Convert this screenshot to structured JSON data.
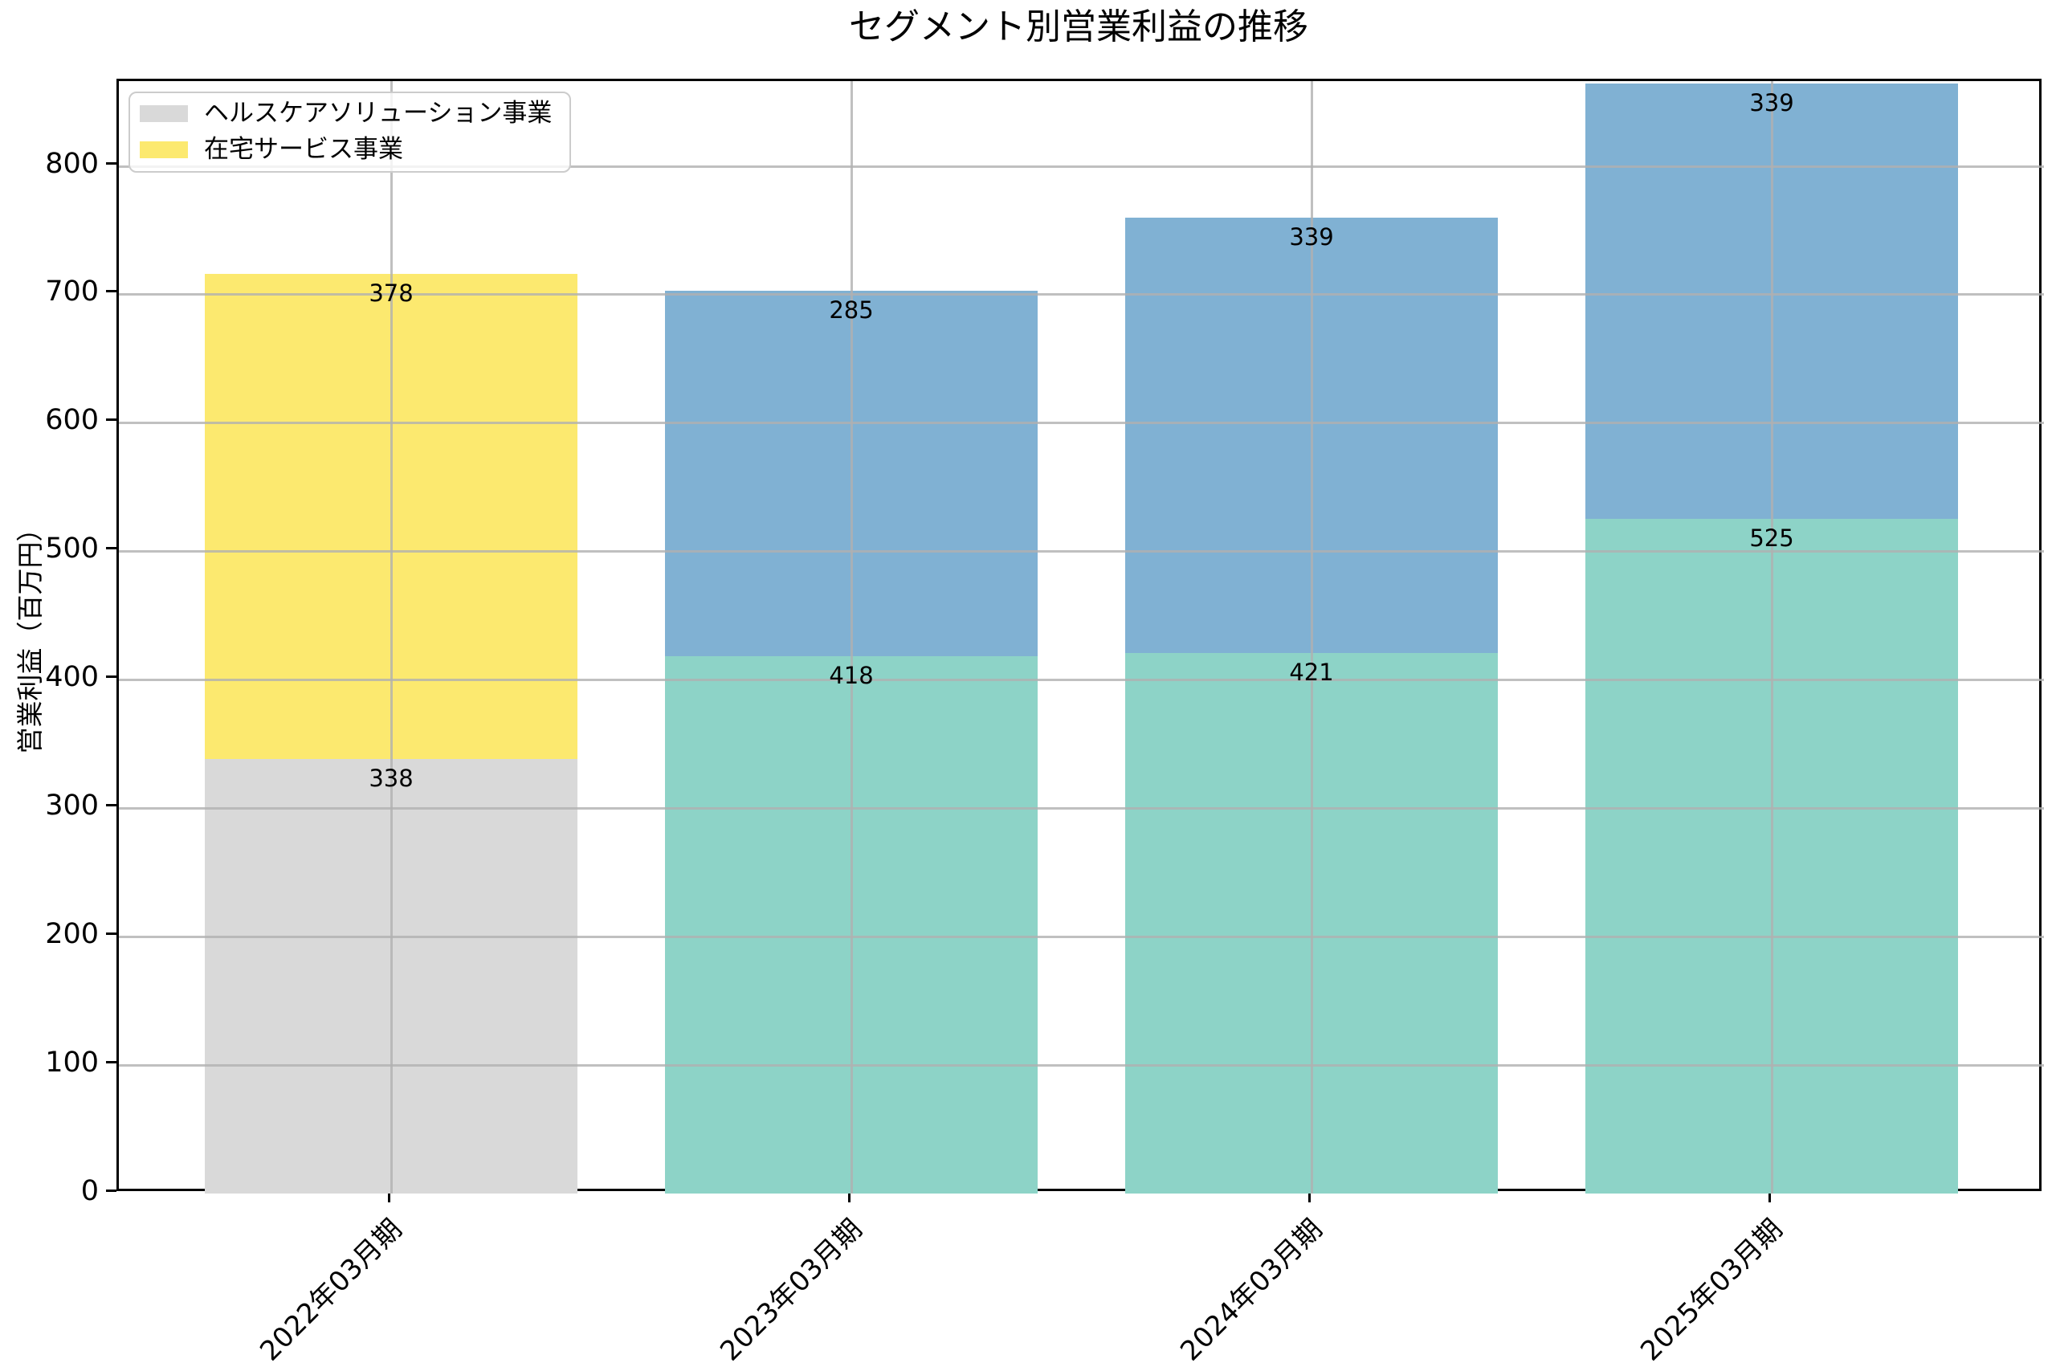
{
  "chart_data": {
    "type": "bar",
    "stacked": true,
    "title": "セグメント別営業利益の推移",
    "ylabel": "営業利益（百万円）",
    "xlabel": "",
    "grid": true,
    "legend_position": "upper-left",
    "legend": [
      {
        "label": "ヘルスケアソリューション事業",
        "color": "#D9D9D9"
      },
      {
        "label": "在宅サービス事業",
        "color": "#FCE96F"
      }
    ],
    "categories": [
      "2022年03月期",
      "2023年03月期",
      "2024年03月期",
      "2025年03月期"
    ],
    "bars": [
      {
        "category": "2022年03月期",
        "segments": [
          {
            "value": 338,
            "label": "338",
            "color": "#D9D9D9"
          },
          {
            "value": 378,
            "label": "378",
            "color": "#FCE96F"
          }
        ]
      },
      {
        "category": "2023年03月期",
        "segments": [
          {
            "value": 418,
            "label": "418",
            "color": "#8DD3C7"
          },
          {
            "value": 285,
            "label": "285",
            "color": "#80B1D3"
          }
        ]
      },
      {
        "category": "2024年03月期",
        "segments": [
          {
            "value": 421,
            "label": "421",
            "color": "#8DD3C7"
          },
          {
            "value": 339,
            "label": "339",
            "color": "#80B1D3"
          }
        ]
      },
      {
        "category": "2025年03月期",
        "segments": [
          {
            "value": 525,
            "label": "525",
            "color": "#8DD3C7"
          },
          {
            "value": 339,
            "label": "339",
            "color": "#80B1D3"
          }
        ]
      }
    ],
    "y_ticks": [
      0,
      100,
      200,
      300,
      400,
      500,
      600,
      700,
      800
    ],
    "ylim": [
      0,
      866
    ],
    "grid_color": "#b0b0b0",
    "axis_color": "#000000"
  }
}
